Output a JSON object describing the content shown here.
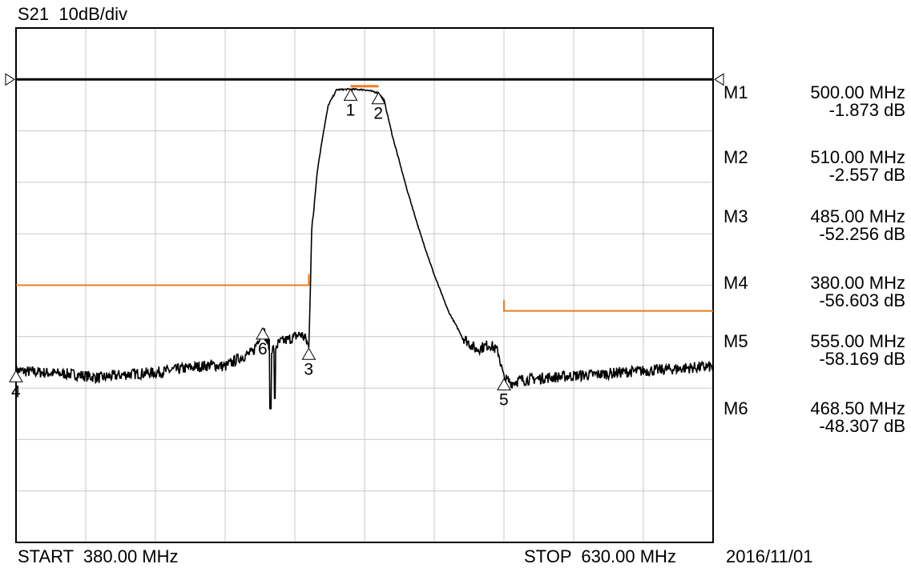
{
  "header": {
    "trace_title": "S21  10dB/div",
    "start": "START  380.00 MHz",
    "stop": "STOP  630.00 MHz",
    "date": "2016/11/01"
  },
  "markers": [
    {
      "name": "M1",
      "freq": "500.00 MHz",
      "level": "-1.873 dB"
    },
    {
      "name": "M2",
      "freq": "510.00 MHz",
      "level": "-2.557 dB"
    },
    {
      "name": "M3",
      "freq": "485.00 MHz",
      "level": "-52.256 dB"
    },
    {
      "name": "M4",
      "freq": "380.00 MHz",
      "level": "-56.603 dB"
    },
    {
      "name": "M5",
      "freq": "555.00 MHz",
      "level": "-58.169 dB"
    },
    {
      "name": "M6",
      "freq": "468.50 MHz",
      "level": "-48.307 dB"
    }
  ],
  "chart_data": {
    "type": "line",
    "series": [
      {
        "values_note": "",
        "x": [
          380,
          390,
          400,
          410,
          420,
          430,
          440,
          450,
          455,
          460,
          465,
          468.5,
          470,
          472,
          475,
          478,
          480,
          482,
          484,
          485,
          486,
          488,
          490,
          492,
          495,
          500,
          505,
          510,
          512,
          515,
          520,
          525,
          530,
          535,
          540,
          545,
          550,
          553,
          555,
          558,
          560,
          570,
          580,
          590,
          600,
          610,
          620,
          630
        ],
        "y": [
          -56.6,
          -57.0,
          -57.3,
          -58.0,
          -57.3,
          -57.0,
          -56.2,
          -55.5,
          -55.8,
          -54.2,
          -53.0,
          -48.3,
          -51.0,
          -52.5,
          -51.0,
          -50.5,
          -50.0,
          -49.5,
          -50.5,
          -52.3,
          -30.0,
          -18.0,
          -11.0,
          -5.0,
          -2.0,
          -1.9,
          -2.0,
          -2.6,
          -4.0,
          -11.0,
          -21.0,
          -30.0,
          -38.0,
          -45.0,
          -50.0,
          -52.5,
          -51.5,
          -53.0,
          -58.2,
          -59.0,
          -58.5,
          -58.0,
          -57.6,
          -57.3,
          -56.8,
          -56.5,
          -56.1,
          -55.8
        ]
      }
    ],
    "xlim": [
      380,
      630
    ],
    "ylim": [
      -90,
      10
    ],
    "reference_level_db": 0,
    "limit_lines": [
      {
        "x": [
          380,
          485
        ],
        "y": -40
      },
      {
        "x": [
          555,
          630
        ],
        "y": -45
      }
    ],
    "passband_limit": {
      "x": [
        500,
        510
      ],
      "y": -1
    },
    "marker_points": [
      {
        "label": "1",
        "x": 500,
        "y": -1.873
      },
      {
        "label": "2",
        "x": 510,
        "y": -2.557
      },
      {
        "label": "3",
        "x": 485,
        "y": -52.256
      },
      {
        "label": "4",
        "x": 380,
        "y": -56.603
      },
      {
        "label": "5",
        "x": 555,
        "y": -58.169
      },
      {
        "label": "6",
        "x": 468.5,
        "y": -48.307
      }
    ],
    "grid": true,
    "colors": {
      "trace": "#000000",
      "limit": "#ed7d1f",
      "grid": "#c8c8c8",
      "reference": "#000000"
    }
  }
}
